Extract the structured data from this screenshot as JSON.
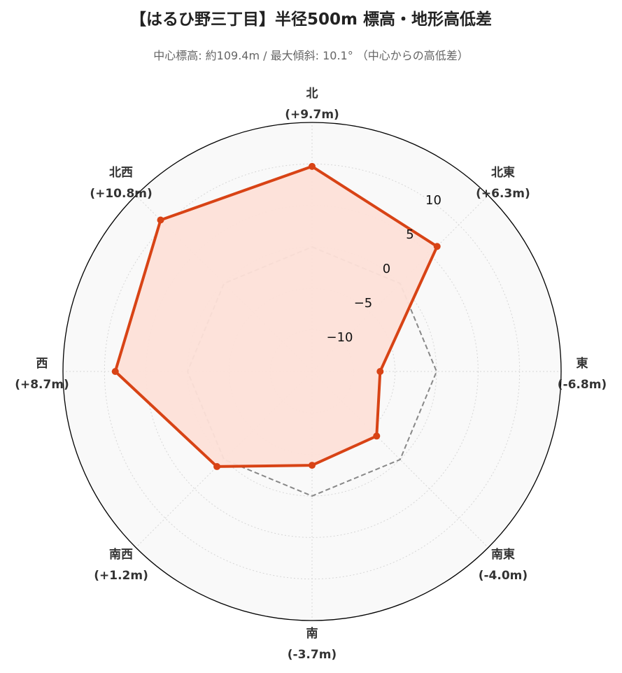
{
  "chart_data": {
    "type": "radar",
    "title": "【はるひ野三丁目】半径500m 標高・地形高低差",
    "subtitle": "中心標高: 約109.4m / 最大傾斜: 10.1° （中心からの高低差）",
    "axes": [
      {
        "name": "北",
        "value_label": "(+9.7m)"
      },
      {
        "name": "北東",
        "value_label": "(+6.3m)"
      },
      {
        "name": "東",
        "value_label": "(-6.8m)"
      },
      {
        "name": "南東",
        "value_label": "(-4.0m)"
      },
      {
        "name": "南",
        "value_label": "(-3.7m)"
      },
      {
        "name": "南西",
        "value_label": "(+1.2m)"
      },
      {
        "name": "西",
        "value_label": "(+8.7m)"
      },
      {
        "name": "北西",
        "value_label": "(+10.8m)"
      }
    ],
    "series": [
      {
        "values": [
          9.7,
          6.3,
          -6.8,
          -4.0,
          -3.7,
          1.2,
          8.7,
          10.8
        ],
        "color": "#d84315",
        "fill": "#fde0d8"
      }
    ],
    "reference": {
      "value": 0,
      "style": "dashed",
      "color": "#888888"
    },
    "radial_range": [
      -15,
      15
    ],
    "radial_ticks": [
      {
        "value": -10,
        "label": "−10"
      },
      {
        "value": -5,
        "label": "−5"
      },
      {
        "value": 0,
        "label": "0"
      },
      {
        "value": 5,
        "label": "5"
      },
      {
        "value": 10,
        "label": "10"
      }
    ],
    "grid": true
  }
}
